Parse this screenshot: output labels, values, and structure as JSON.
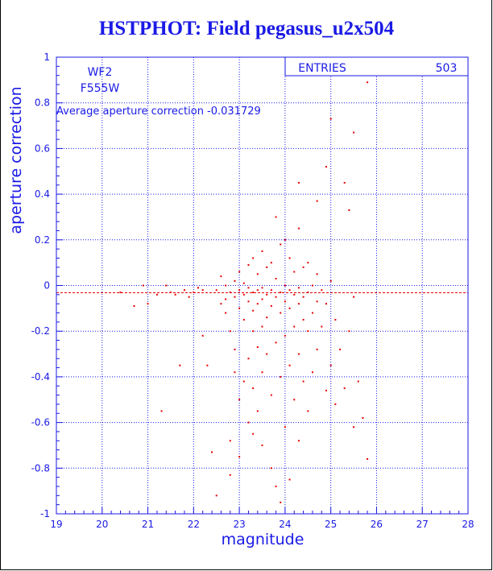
{
  "title": "HSTPHOT: Field pegasus_u2x504",
  "chart_data": {
    "type": "scatter",
    "xlabel": "magnitude",
    "ylabel": "aperture correction",
    "xlim": [
      19,
      28
    ],
    "ylim": [
      -1,
      1
    ],
    "x_ticks": [
      19,
      20,
      21,
      22,
      23,
      24,
      25,
      26,
      27,
      28
    ],
    "y_ticks": [
      -1,
      -0.8,
      -0.6,
      -0.4,
      -0.2,
      0,
      0.2,
      0.4,
      0.6,
      0.8,
      1
    ],
    "grid": true,
    "annotations": {
      "camera": "WF2",
      "filter": "F555W",
      "average_text": "Average aperture correction -0.031729"
    },
    "average_line": -0.031729,
    "stats_box": {
      "label": "ENTRIES",
      "value": "503"
    },
    "colors": {
      "axis": "#1a1ae6",
      "points": "#e60000",
      "average_line": "#e60000"
    },
    "points": [
      [
        20.4,
        -0.03
      ],
      [
        20.7,
        -0.09
      ],
      [
        20.9,
        0.0
      ],
      [
        21.0,
        -0.08
      ],
      [
        21.2,
        -0.04
      ],
      [
        21.3,
        -0.55
      ],
      [
        21.4,
        0.0
      ],
      [
        21.5,
        -0.03
      ],
      [
        21.6,
        -0.04
      ],
      [
        21.7,
        -0.35
      ],
      [
        21.8,
        -0.02
      ],
      [
        21.9,
        -0.05
      ],
      [
        22.0,
        -0.03
      ],
      [
        22.1,
        -0.01
      ],
      [
        22.2,
        -0.02
      ],
      [
        22.2,
        -0.22
      ],
      [
        22.3,
        -0.35
      ],
      [
        22.4,
        -0.73
      ],
      [
        22.5,
        -0.92
      ],
      [
        22.5,
        -0.02
      ],
      [
        22.6,
        0.04
      ],
      [
        22.6,
        -0.08
      ],
      [
        22.7,
        0.0
      ],
      [
        22.7,
        -0.06
      ],
      [
        22.7,
        -0.12
      ],
      [
        22.8,
        -0.03
      ],
      [
        22.8,
        -0.2
      ],
      [
        22.8,
        -0.68
      ],
      [
        22.8,
        -0.83
      ],
      [
        22.9,
        0.02
      ],
      [
        22.9,
        -0.05
      ],
      [
        22.9,
        -0.28
      ],
      [
        22.9,
        -0.38
      ],
      [
        23.0,
        0.06
      ],
      [
        23.0,
        -0.02
      ],
      [
        23.0,
        -0.1
      ],
      [
        23.0,
        -0.5
      ],
      [
        23.0,
        -0.75
      ],
      [
        23.1,
        0.01
      ],
      [
        23.1,
        -0.04
      ],
      [
        23.1,
        -0.15
      ],
      [
        23.1,
        -0.42
      ],
      [
        23.2,
        0.09
      ],
      [
        23.2,
        -0.01
      ],
      [
        23.2,
        -0.07
      ],
      [
        23.2,
        -0.32
      ],
      [
        23.2,
        -0.6
      ],
      [
        23.3,
        0.12
      ],
      [
        23.3,
        -0.03
      ],
      [
        23.3,
        -0.11
      ],
      [
        23.3,
        -0.2
      ],
      [
        23.3,
        -0.45
      ],
      [
        23.3,
        -0.65
      ],
      [
        23.4,
        0.05
      ],
      [
        23.4,
        -0.02
      ],
      [
        23.4,
        -0.08
      ],
      [
        23.4,
        -0.27
      ],
      [
        23.4,
        -0.55
      ],
      [
        23.5,
        0.15
      ],
      [
        23.5,
        -0.01
      ],
      [
        23.5,
        -0.06
      ],
      [
        23.5,
        -0.18
      ],
      [
        23.5,
        -0.38
      ],
      [
        23.5,
        -0.7
      ],
      [
        23.6,
        0.08
      ],
      [
        23.6,
        -0.04
      ],
      [
        23.6,
        -0.14
      ],
      [
        23.6,
        -0.3
      ],
      [
        23.7,
        0.1
      ],
      [
        23.7,
        -0.02
      ],
      [
        23.7,
        -0.09
      ],
      [
        23.7,
        -0.48
      ],
      [
        23.7,
        -0.8
      ],
      [
        23.8,
        0.3
      ],
      [
        23.8,
        0.03
      ],
      [
        23.8,
        -0.05
      ],
      [
        23.8,
        -0.25
      ],
      [
        23.8,
        -0.88
      ],
      [
        23.9,
        0.18
      ],
      [
        23.9,
        -0.03
      ],
      [
        23.9,
        -0.12
      ],
      [
        23.9,
        -0.4
      ],
      [
        23.9,
        -0.95
      ],
      [
        24.0,
        0.2
      ],
      [
        24.0,
        0.0
      ],
      [
        24.0,
        -0.07
      ],
      [
        24.0,
        -0.22
      ],
      [
        24.0,
        -0.62
      ],
      [
        24.1,
        0.12
      ],
      [
        24.1,
        -0.02
      ],
      [
        24.1,
        -0.1
      ],
      [
        24.1,
        -0.35
      ],
      [
        24.1,
        -0.85
      ],
      [
        24.2,
        0.06
      ],
      [
        24.2,
        -0.04
      ],
      [
        24.2,
        -0.18
      ],
      [
        24.2,
        -0.5
      ],
      [
        24.3,
        0.45
      ],
      [
        24.3,
        0.25
      ],
      [
        24.3,
        -0.01
      ],
      [
        24.3,
        -0.08
      ],
      [
        24.3,
        -0.3
      ],
      [
        24.3,
        -0.68
      ],
      [
        24.4,
        0.08
      ],
      [
        24.4,
        -0.05
      ],
      [
        24.4,
        -0.15
      ],
      [
        24.4,
        -0.42
      ],
      [
        24.5,
        0.1
      ],
      [
        24.5,
        -0.03
      ],
      [
        24.5,
        -0.2
      ],
      [
        24.5,
        -0.55
      ],
      [
        24.6,
        0.0
      ],
      [
        24.6,
        -0.12
      ],
      [
        24.6,
        -0.38
      ],
      [
        24.7,
        0.37
      ],
      [
        24.7,
        0.05
      ],
      [
        24.7,
        -0.07
      ],
      [
        24.7,
        -0.28
      ],
      [
        24.8,
        -0.02
      ],
      [
        24.8,
        -0.18
      ],
      [
        24.9,
        0.52
      ],
      [
        24.9,
        -0.08
      ],
      [
        24.9,
        -0.46
      ],
      [
        25.0,
        0.73
      ],
      [
        25.0,
        0.02
      ],
      [
        25.0,
        -0.35
      ],
      [
        25.1,
        -0.15
      ],
      [
        25.1,
        -0.52
      ],
      [
        25.2,
        -0.28
      ],
      [
        25.3,
        0.45
      ],
      [
        25.3,
        -0.45
      ],
      [
        25.4,
        0.33
      ],
      [
        25.4,
        -0.2
      ],
      [
        25.5,
        0.67
      ],
      [
        25.5,
        -0.05
      ],
      [
        25.5,
        -0.62
      ],
      [
        25.6,
        -0.42
      ],
      [
        25.7,
        -0.58
      ],
      [
        25.8,
        0.89
      ],
      [
        25.8,
        -0.76
      ]
    ]
  }
}
